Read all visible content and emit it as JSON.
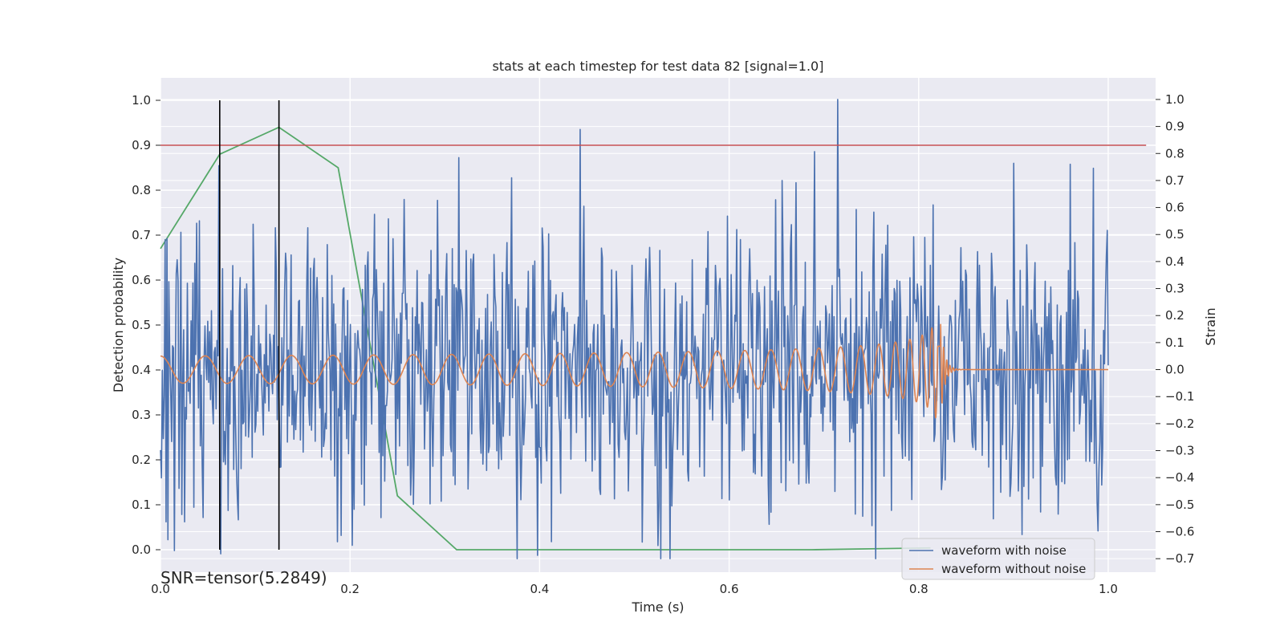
{
  "chart_data": {
    "type": "line",
    "title": "stats at each timestep for test data 82 [signal=1.0]",
    "xlabel": "Time (s)",
    "ylabel_left": "Detection probability",
    "ylabel_right": "Strain",
    "xlim": [
      0.0,
      1.05
    ],
    "ylim_left": [
      -0.05,
      1.05
    ],
    "ylim_right": [
      -0.75,
      1.08
    ],
    "x_ticks": [
      "0.0",
      "0.2",
      "0.4",
      "0.6",
      "0.8",
      "1.0"
    ],
    "x_tick_values": [
      0.0,
      0.2,
      0.4,
      0.6,
      0.8,
      1.0
    ],
    "y_left_ticks": [
      "0.0",
      "0.1",
      "0.2",
      "0.3",
      "0.4",
      "0.5",
      "0.6",
      "0.7",
      "0.8",
      "0.9",
      "1.0"
    ],
    "y_left_tick_values": [
      0.0,
      0.1,
      0.2,
      0.3,
      0.4,
      0.5,
      0.6,
      0.7,
      0.8,
      0.9,
      1.0
    ],
    "y_right_ticks": [
      "−0.7",
      "−0.6",
      "−0.5",
      "−0.4",
      "−0.3",
      "−0.2",
      "−0.1",
      "0.0",
      "0.1",
      "0.2",
      "0.3",
      "0.4",
      "0.5",
      "0.6",
      "0.7",
      "0.8",
      "0.9",
      "1.0"
    ],
    "y_right_tick_values": [
      -0.7,
      -0.6,
      -0.5,
      -0.4,
      -0.3,
      -0.2,
      -0.1,
      0.0,
      0.1,
      0.2,
      0.3,
      0.4,
      0.5,
      0.6,
      0.7,
      0.8,
      0.9,
      1.0
    ],
    "grid": true,
    "background": "#eaeaf2",
    "threshold": {
      "y": 0.9,
      "color": "#c44e52"
    },
    "vertical_markers": {
      "x": [
        0.0625,
        0.125
      ],
      "ymin": 0.0,
      "ymax": 1.0,
      "color": "#000000"
    },
    "detection_probability": {
      "color": "#55a868",
      "x": [
        0.0,
        0.0625,
        0.125,
        0.1875,
        0.25,
        0.3125,
        0.375,
        0.4375,
        0.5,
        0.5625,
        0.625,
        0.6875,
        0.75,
        0.8125
      ],
      "y": [
        0.67,
        0.88,
        0.94,
        0.85,
        0.12,
        0.0,
        0.0,
        0.0,
        0.0,
        0.0,
        0.0,
        0.0,
        0.002,
        0.004
      ]
    },
    "series": [
      {
        "name": "waveform with noise",
        "axis": "right",
        "color": "#4c72b0",
        "x_range": [
          0.0,
          1.0
        ],
        "n_points": 1024,
        "approx_std": 0.27,
        "y_range": [
          -0.7,
          1.0
        ],
        "peaks": [
          {
            "x": 0.715,
            "y": 1.0
          },
          {
            "x": 0.96,
            "y": 0.76
          },
          {
            "x": 0.37,
            "y": 0.71
          }
        ],
        "troughs": [
          {
            "x": 0.528,
            "y": -0.7
          },
          {
            "x": 0.015,
            "y": -0.67
          }
        ]
      },
      {
        "name": "waveform without noise",
        "axis": "right",
        "color": "#dd8452",
        "x_range": [
          0.0,
          1.0
        ],
        "chirp_start_freq_hz": 21,
        "merger_time": 0.823,
        "peak_amplitude": 0.19,
        "start_amplitude": 0.05,
        "post_merger_value": 0.0
      }
    ],
    "legend": {
      "placement": "lower-right"
    },
    "annotation": "SNR=tensor(5.2849)"
  }
}
